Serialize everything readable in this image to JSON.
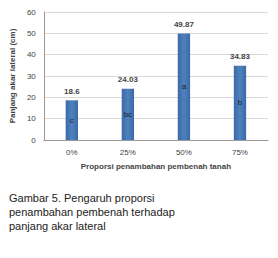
{
  "chart_data": {
    "type": "bar",
    "caption": "Gambar 5. Pengaruh proporsi penambahan pembenah terhadap panjang akar lateral",
    "x_label": "Proporsi penambahan pembenah tanah",
    "y_label": "Panjang akar lateral (cm)",
    "categories": [
      "0%",
      "25%",
      "50%",
      "75%"
    ],
    "values": [
      18.6,
      24.03,
      49.87,
      34.83
    ],
    "annotations": [
      "c",
      "bc",
      "a",
      "b"
    ],
    "color": "#4f81bd",
    "ylim": [
      0,
      60
    ],
    "yticks": [
      0,
      10,
      20,
      30,
      40,
      50,
      60
    ],
    "grid": true,
    "data_labels": true
  }
}
